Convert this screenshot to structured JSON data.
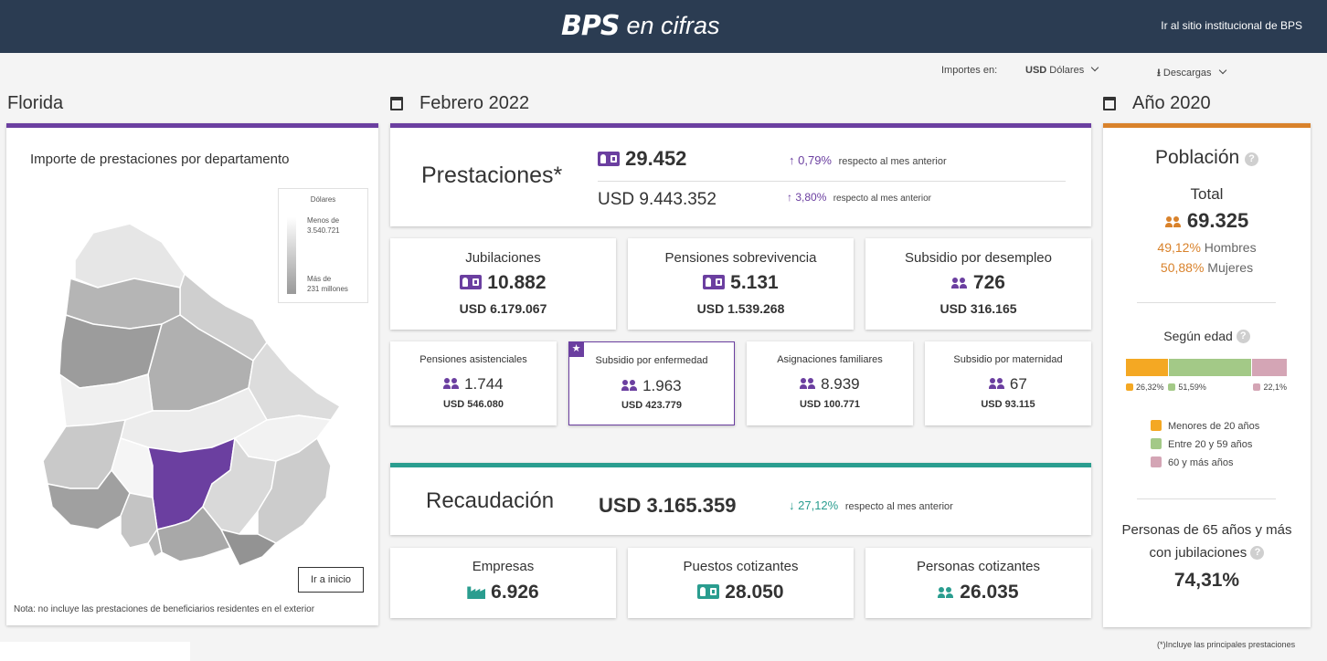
{
  "header": {
    "logo_brand": "BPS",
    "logo_suffix": "en cifras",
    "link": "Ir al sitio institucional de BPS"
  },
  "options": {
    "importes_label": "Importes en:",
    "currency_code": "USD",
    "currency_name": "Dólares",
    "downloads": "Descargas"
  },
  "map_panel": {
    "department": "Florida",
    "title": "Importe de prestaciones por departamento",
    "legend_title": "Dólares",
    "legend_min_1": "Menos de",
    "legend_min_2": "3.540.721",
    "legend_max_1": "Más de",
    "legend_max_2": "231 millones",
    "home_button": "Ir a inicio",
    "note": "Nota: no incluye las prestaciones de beneficiarios residentes en el exterior",
    "highlight_color": "#6b3fa0"
  },
  "month": {
    "title": "Febrero 2022",
    "accent": "#6b3fa0",
    "prestaciones": {
      "label": "Prestaciones*",
      "count": "29.452",
      "count_change": "0,79%",
      "count_change_text": "respecto al mes anterior",
      "amount": "USD 9.443.352",
      "amount_change": "3,80%",
      "amount_change_text": "respecto al mes anterior"
    },
    "big_cards": [
      {
        "label": "Jubilaciones",
        "count": "10.882",
        "amount": "USD 6.179.067",
        "icon": "id-card-icon"
      },
      {
        "label": "Pensiones sobrevivencia",
        "count": "5.131",
        "amount": "USD 1.539.268",
        "icon": "id-card-icon"
      },
      {
        "label": "Subsidio por desempleo",
        "count": "726",
        "amount": "USD 316.165",
        "icon": "people-icon"
      }
    ],
    "small_cards": [
      {
        "label": "Pensiones asistenciales",
        "count": "1.744",
        "amount": "USD 546.080"
      },
      {
        "label": "Subsidio por enfermedad",
        "count": "1.963",
        "amount": "USD 423.779"
      },
      {
        "label": "Asignaciones familiares",
        "count": "8.939",
        "amount": "USD 100.771"
      },
      {
        "label": "Subsidio por maternidad",
        "count": "67",
        "amount": "USD 93.115"
      }
    ],
    "recaudacion": {
      "label": "Recaudación",
      "amount": "USD 3.165.359",
      "change": "27,12%",
      "change_text": "respecto al mes anterior",
      "accent": "#2a9d8f"
    },
    "contrib_cards": [
      {
        "label": "Empresas",
        "value": "6.926"
      },
      {
        "label": "Puestos cotizantes",
        "value": "28.050"
      },
      {
        "label": "Personas cotizantes",
        "value": "26.035"
      }
    ]
  },
  "year": {
    "title": "Año 2020",
    "accent": "#d9822b",
    "poblacion": "Población",
    "total_label": "Total",
    "total": "69.325",
    "hombres_pct": "49,12%",
    "hombres_label": "Hombres",
    "mujeres_pct": "50,88%",
    "mujeres_label": "Mujeres",
    "edad_title": "Según edad",
    "edad": [
      {
        "label": "Menores de 20 años",
        "pct": "26,32%",
        "value": 26.32,
        "color": "#f4a823"
      },
      {
        "label": "Entre 20 y 59 años",
        "pct": "51,59%",
        "value": 51.59,
        "color": "#a3c987"
      },
      {
        "label": "60 y más años",
        "pct": "22,1%",
        "value": 22.1,
        "color": "#d4a5b5"
      }
    ],
    "jub_line1": "Personas de 65 años y más",
    "jub_line2": "con jubilaciones",
    "jub_pct": "74,31%"
  },
  "footnote": "(*)Incluye las principales prestaciones"
}
